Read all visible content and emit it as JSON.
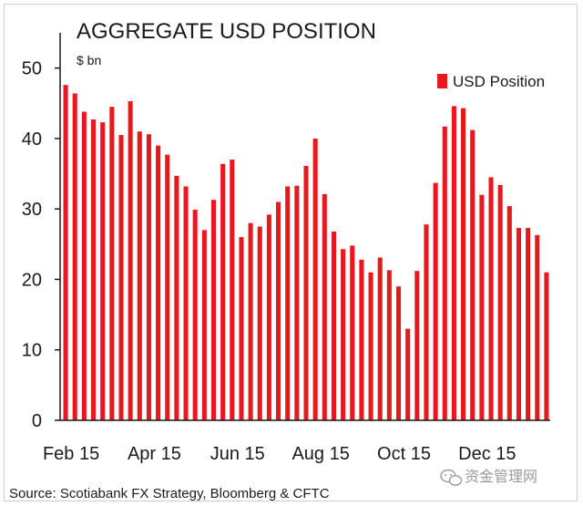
{
  "chart_data": {
    "type": "bar",
    "title": "AGGREGATE USD POSITION",
    "ylabel": "$ bn",
    "xlabel": "",
    "ylim": [
      0,
      55
    ],
    "yticks": [
      0,
      10,
      20,
      30,
      40,
      50
    ],
    "x_tick_labels": [
      "Feb 15",
      "Apr 15",
      "Jun 15",
      "Aug 15",
      "Oct 15",
      "Dec 15"
    ],
    "x_tick_bar_index": [
      0,
      9,
      18,
      27,
      36,
      45
    ],
    "series": [
      {
        "name": "USD Position",
        "color": "#e8191e",
        "values": [
          47.6,
          46.4,
          43.8,
          42.7,
          42.3,
          44.5,
          40.5,
          45.3,
          41.0,
          40.6,
          39.0,
          37.7,
          34.7,
          33.2,
          29.9,
          27.0,
          31.3,
          36.4,
          37.0,
          26.0,
          28.0,
          27.5,
          29.2,
          31.0,
          33.2,
          33.3,
          36.1,
          40.0,
          32.1,
          26.8,
          24.3,
          24.8,
          22.8,
          21.0,
          23.1,
          21.3,
          19.0,
          13.0,
          21.2,
          27.8,
          33.7,
          41.7,
          44.6,
          44.3,
          41.2,
          32.0,
          34.5,
          33.4,
          30.4,
          27.3,
          27.3,
          26.3,
          21.0
        ]
      }
    ]
  },
  "legend": {
    "label": "USD Position"
  },
  "source": "Source: Scotiabank FX Strategy, Bloomberg & CFTC",
  "watermark": "资金管理网"
}
